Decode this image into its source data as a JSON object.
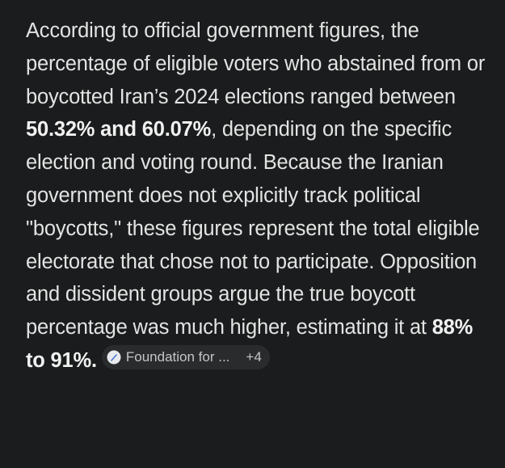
{
  "message": {
    "segments": [
      {
        "text": "According to official government figures, the percentage of eligible voters who abstained from or boycotted Iran’s 2024 elections ranged between ",
        "bold": false
      },
      {
        "text": "50.32% and 60.07%",
        "bold": true
      },
      {
        "text": ", depending on the specific election and voting round. Because the Iranian government does not explicitly track political \"boycotts,\" these figures represent the total eligible electorate that chose not to participate. Opposition and dissident groups argue the true boycott percentage was much higher, estimating it at ",
        "bold": false
      },
      {
        "text": "88% to 91%.",
        "bold": true
      }
    ],
    "citation": {
      "source": "Foundation for ...",
      "more": "+4"
    }
  }
}
